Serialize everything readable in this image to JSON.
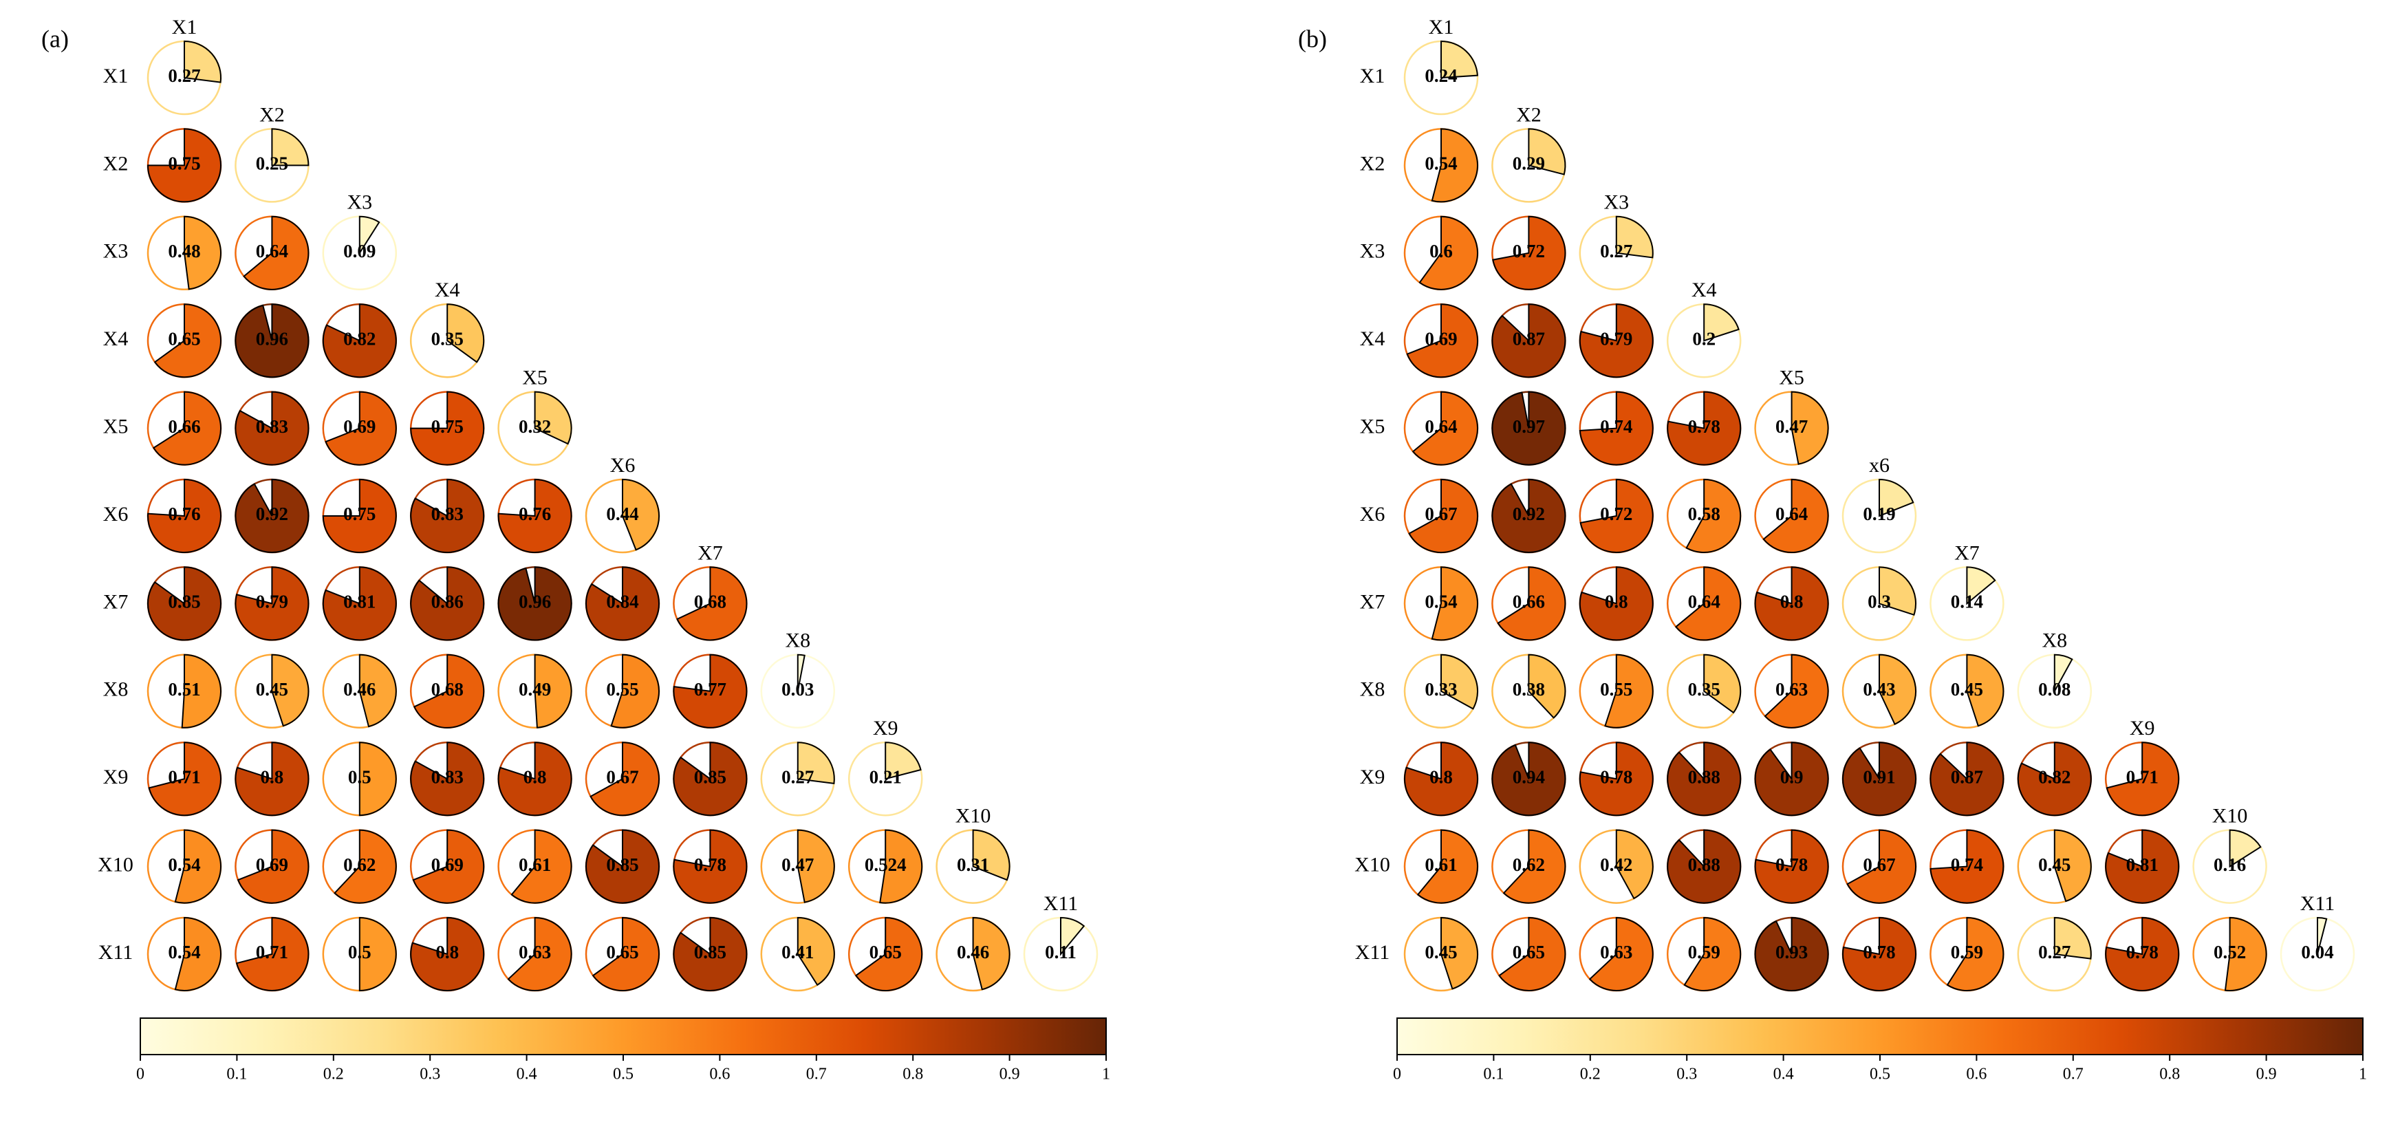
{
  "chart_data": [
    {
      "type": "correlogram",
      "title": "(a)",
      "row_labels": [
        "X1",
        "X2",
        "X3",
        "X4",
        "X5",
        "X6",
        "X7",
        "X8",
        "X9",
        "X10",
        "X11"
      ],
      "column_labels": [
        "X1",
        "X2",
        "X3",
        "X4",
        "X5",
        "X6",
        "X7",
        "X8",
        "X9",
        "X10",
        "X11"
      ],
      "values": [
        [
          0.27
        ],
        [
          0.75,
          0.25
        ],
        [
          0.48,
          0.64,
          0.09
        ],
        [
          0.65,
          0.96,
          0.82,
          0.35
        ],
        [
          0.66,
          0.83,
          0.69,
          0.75,
          0.32
        ],
        [
          0.76,
          0.92,
          0.75,
          0.83,
          0.76,
          0.44
        ],
        [
          0.85,
          0.79,
          0.81,
          0.86,
          0.96,
          0.84,
          0.68
        ],
        [
          0.51,
          0.45,
          0.46,
          0.68,
          0.49,
          0.55,
          0.77,
          0.03
        ],
        [
          0.71,
          0.8,
          0.5,
          0.83,
          0.8,
          0.67,
          0.85,
          0.27,
          0.21
        ],
        [
          0.54,
          0.69,
          0.62,
          0.69,
          0.61,
          0.85,
          0.78,
          0.47,
          0.524,
          0.31
        ],
        [
          0.54,
          0.71,
          0.5,
          0.8,
          0.63,
          0.65,
          0.85,
          0.41,
          0.65,
          0.46,
          0.11
        ]
      ],
      "colormap": [
        "#fffde0",
        "#fff3b8",
        "#fedf8a",
        "#fec050",
        "#fe9a28",
        "#f57010",
        "#dc4c04",
        "#a43604",
        "#662506"
      ],
      "clim": [
        0,
        1
      ],
      "cticks": [
        0,
        0.1,
        0.2,
        0.3,
        0.4,
        0.5,
        0.6,
        0.7,
        0.8,
        0.9,
        1
      ]
    },
    {
      "type": "correlogram",
      "title": "(b)",
      "row_labels": [
        "X1",
        "X2",
        "X3",
        "X4",
        "X5",
        "X6",
        "X7",
        "X8",
        "X9",
        "X10",
        "X11"
      ],
      "column_labels": [
        "X1",
        "X2",
        "X3",
        "X4",
        "X5",
        "x6",
        "X7",
        "X8",
        "X9",
        "X10",
        "X11"
      ],
      "values": [
        [
          0.24
        ],
        [
          0.54,
          0.29
        ],
        [
          0.6,
          0.72,
          0.27
        ],
        [
          0.69,
          0.87,
          0.79,
          0.2
        ],
        [
          0.64,
          0.97,
          0.74,
          0.78,
          0.47
        ],
        [
          0.67,
          0.92,
          0.72,
          0.58,
          0.64,
          0.19
        ],
        [
          0.54,
          0.66,
          0.8,
          0.64,
          0.8,
          0.3,
          0.14
        ],
        [
          0.33,
          0.38,
          0.55,
          0.35,
          0.63,
          0.43,
          0.45,
          0.08
        ],
        [
          0.8,
          0.94,
          0.78,
          0.88,
          0.9,
          0.91,
          0.87,
          0.82,
          0.71
        ],
        [
          0.61,
          0.62,
          0.42,
          0.88,
          0.78,
          0.67,
          0.74,
          0.45,
          0.81,
          0.16
        ],
        [
          0.45,
          0.65,
          0.63,
          0.59,
          0.93,
          0.78,
          0.59,
          0.27,
          0.78,
          0.52,
          0.04
        ]
      ],
      "colormap": [
        "#fffde0",
        "#fff3b8",
        "#fedf8a",
        "#fec050",
        "#fe9a28",
        "#f57010",
        "#dc4c04",
        "#a43604",
        "#662506"
      ],
      "clim": [
        0,
        1
      ],
      "cticks": [
        0,
        0.1,
        0.2,
        0.3,
        0.4,
        0.5,
        0.6,
        0.7,
        0.8,
        0.9,
        1
      ]
    }
  ]
}
